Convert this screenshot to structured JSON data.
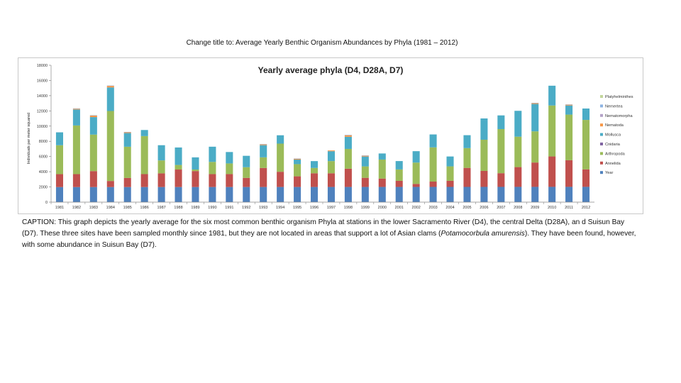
{
  "note": "Change title to: Average Yearly Benthic Organism Abundances by Phyla (1981 – 2012)",
  "caption": {
    "lead": "CAPTION: This graph depicts the yearly average for the six most common benthic organism Phyla at stations in the lower Sacramento River (D4), the central Delta (D28A), an d Suisun Bay (D7). These three sites have been sampled monthly since 1981, but they are not located in areas that support a lot of Asian clams (",
    "species": "Potamocorbula amurensis",
    "tail": "). They have been found, however, with some abundance in Suisun Bay (D7)."
  },
  "colors": {
    "Year": "#4f81bd",
    "Annelida": "#c0504d",
    "Arthropoda": "#9bbb59",
    "Cnidaria": "#8064a2",
    "Mollusca": "#4bacc6",
    "Nematoda": "#f79646",
    "Nemertea": "#8db3e2",
    "Platyhelminthes": "#c3d69b",
    "Nematomorpha": "#b3a2c7"
  },
  "chart_data": {
    "type": "bar",
    "stacked": true,
    "title": "Yearly average phyla (D4, D28A, D7)",
    "xlabel": "",
    "ylabel": "Individuals per meter squared",
    "ylim": [
      0,
      18000
    ],
    "yticks": [
      0,
      2000,
      4000,
      6000,
      8000,
      10000,
      12000,
      14000,
      16000,
      18000
    ],
    "grid": false,
    "legend_position": "right",
    "categories": [
      "1981",
      "1982",
      "1983",
      "1984",
      "1985",
      "1986",
      "1987",
      "1988",
      "1989",
      "1990",
      "1991",
      "1992",
      "1993",
      "1994",
      "1995",
      "1996",
      "1997",
      "1998",
      "1999",
      "2000",
      "2001",
      "2002",
      "2003",
      "2004",
      "2005",
      "2006",
      "2007",
      "2008",
      "2009",
      "2010",
      "2011",
      "2012"
    ],
    "legend_order": [
      "Platyhelminthes",
      "Nemertea",
      "Nematomorpha",
      "Nematoda",
      "Mollusca",
      "Cnidaria",
      "Arthropoda",
      "Annelida",
      "Year"
    ],
    "series": [
      {
        "name": "Year",
        "values": [
          1981,
          1982,
          1983,
          1984,
          1985,
          1986,
          1987,
          1988,
          1989,
          1990,
          1991,
          1992,
          1993,
          1994,
          1995,
          1996,
          1997,
          1998,
          1999,
          2000,
          2001,
          2002,
          2003,
          2004,
          2005,
          2006,
          2007,
          2008,
          2009,
          2010,
          2011,
          2012
        ]
      },
      {
        "name": "Annelida",
        "values": [
          1700,
          1700,
          2100,
          800,
          1200,
          1700,
          1800,
          2300,
          2100,
          1700,
          1700,
          1200,
          2500,
          2000,
          1400,
          1800,
          1800,
          2400,
          1200,
          1100,
          800,
          400,
          700,
          800,
          2500,
          2100,
          1800,
          2600,
          3200,
          4000,
          3500,
          2300
        ]
      },
      {
        "name": "Arthropoda",
        "values": [
          3800,
          6400,
          4800,
          9200,
          4100,
          5000,
          1700,
          600,
          200,
          1600,
          1400,
          1400,
          1400,
          3700,
          1600,
          700,
          1600,
          2600,
          1500,
          2500,
          1500,
          2800,
          4500,
          1900,
          2600,
          4100,
          5800,
          4000,
          4100,
          6700,
          6000,
          6500
        ]
      },
      {
        "name": "Cnidaria",
        "values": [
          0,
          0,
          0,
          0,
          0,
          0,
          0,
          0,
          0,
          0,
          0,
          0,
          0,
          0,
          0,
          0,
          0,
          0,
          0,
          0,
          0,
          0,
          0,
          0,
          0,
          0,
          0,
          0,
          0,
          0,
          0,
          0
        ]
      },
      {
        "name": "Mollusca",
        "values": [
          1700,
          2100,
          2300,
          3100,
          1800,
          800,
          2000,
          2300,
          1600,
          2000,
          1500,
          1500,
          1600,
          1100,
          600,
          900,
          1300,
          1600,
          1300,
          800,
          1100,
          1500,
          1700,
          1300,
          1700,
          2800,
          1800,
          3400,
          3600,
          2600,
          1200,
          1500
        ]
      },
      {
        "name": "Nematoda",
        "values": [
          0,
          100,
          200,
          200,
          100,
          0,
          0,
          0,
          0,
          0,
          0,
          0,
          100,
          0,
          100,
          0,
          100,
          200,
          100,
          0,
          0,
          0,
          0,
          0,
          0,
          0,
          0,
          0,
          100,
          0,
          100,
          0
        ]
      },
      {
        "name": "Nematomorpha",
        "values": [
          0,
          0,
          0,
          0,
          0,
          0,
          0,
          0,
          0,
          0,
          0,
          0,
          0,
          0,
          0,
          0,
          0,
          0,
          0,
          0,
          0,
          0,
          0,
          0,
          0,
          0,
          0,
          0,
          0,
          0,
          0,
          0
        ]
      },
      {
        "name": "Nemertea",
        "values": [
          0,
          50,
          50,
          50,
          50,
          0,
          0,
          0,
          0,
          0,
          0,
          0,
          50,
          0,
          50,
          0,
          0,
          50,
          50,
          0,
          0,
          0,
          0,
          0,
          0,
          0,
          0,
          0,
          50,
          0,
          50,
          0
        ]
      },
      {
        "name": "Platyhelminthes",
        "values": [
          0,
          0,
          0,
          0,
          0,
          0,
          0,
          0,
          0,
          0,
          0,
          0,
          0,
          0,
          0,
          0,
          0,
          0,
          0,
          0,
          0,
          0,
          0,
          0,
          0,
          0,
          0,
          0,
          0,
          0,
          0,
          0
        ]
      }
    ]
  }
}
